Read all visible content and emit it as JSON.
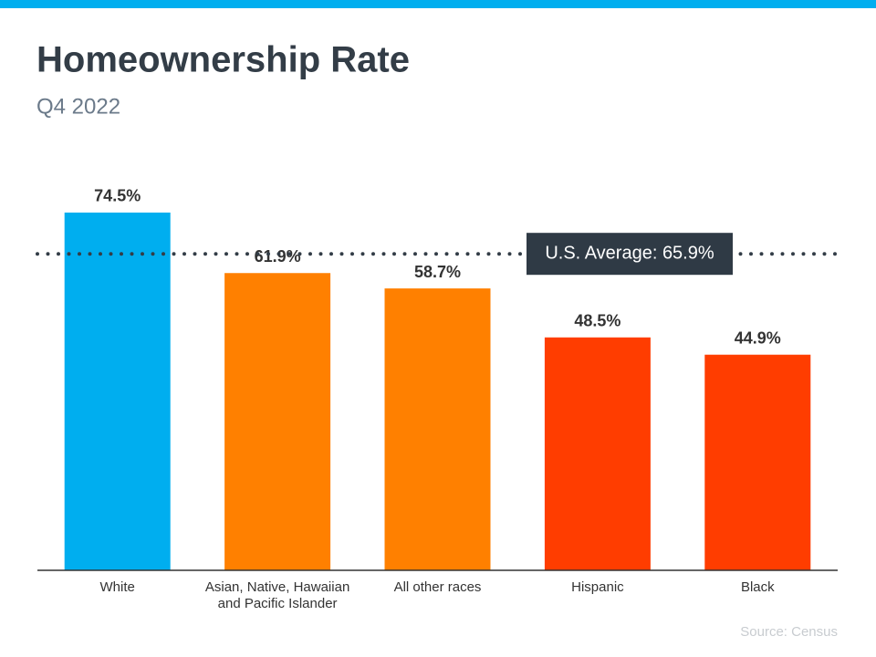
{
  "chart_data": {
    "type": "bar",
    "title": "Homeownership Rate",
    "subtitle": "Q4 2022",
    "categories": [
      "White",
      "Asian, Native, Hawaiian and Pacific Islander",
      "All other races",
      "Hispanic",
      "Black"
    ],
    "values": [
      74.5,
      61.9,
      58.7,
      48.5,
      44.9
    ],
    "value_labels": [
      "74.5%",
      "61.9%",
      "58.7%",
      "48.5%",
      "44.9%"
    ],
    "colors": [
      "#00aeef",
      "#ff8000",
      "#ff8000",
      "#ff3d00",
      "#ff3d00"
    ],
    "ylim": [
      0,
      80
    ],
    "reference_line": {
      "value": 65.9,
      "label": "U.S. Average: 65.9%"
    },
    "source": "Source: Census"
  }
}
